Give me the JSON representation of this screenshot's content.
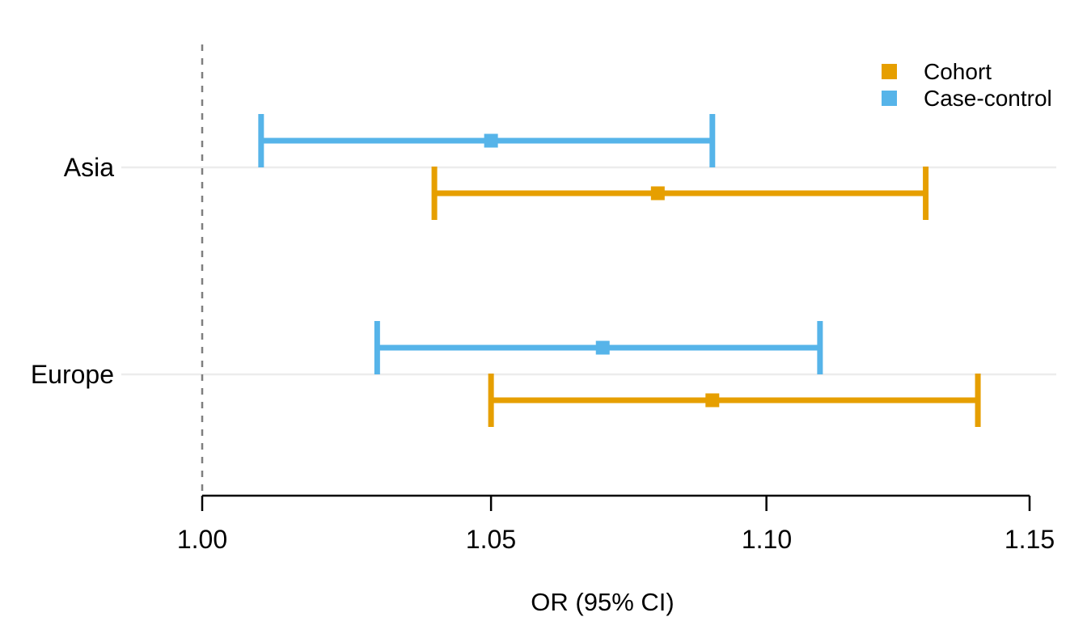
{
  "chart_data": {
    "type": "scatter",
    "subtype": "forest-plot-with-error-bars",
    "title": "",
    "xlabel": "OR (95% CI)",
    "ylabel": "",
    "x_scale": "log",
    "xlim": [
      0.986,
      1.155
    ],
    "x_ticks": [
      1.0,
      1.05,
      1.1,
      1.15
    ],
    "x_tick_labels": [
      "1.00",
      "1.05",
      "1.10",
      "1.15"
    ],
    "reference_line_x": 1.0,
    "grid": "horizontal category gridlines only",
    "legend_position": "top-right",
    "groups": [
      "Asia",
      "Europe"
    ],
    "series": [
      {
        "name": "Cohort",
        "color": "#E69F00",
        "points": [
          {
            "group": "Asia",
            "or": 1.08,
            "ci_low": 1.04,
            "ci_high": 1.13
          },
          {
            "group": "Europe",
            "or": 1.09,
            "ci_low": 1.05,
            "ci_high": 1.14
          }
        ]
      },
      {
        "name": "Case-control",
        "color": "#56B4E9",
        "points": [
          {
            "group": "Asia",
            "or": 1.05,
            "ci_low": 1.01,
            "ci_high": 1.09
          },
          {
            "group": "Europe",
            "or": 1.07,
            "ci_low": 1.03,
            "ci_high": 1.11
          }
        ]
      }
    ],
    "colors": {
      "reference_line": "#7F7F7F",
      "gridline": "#ECECEC",
      "axis": "#000000",
      "text": "#000000",
      "background": "#FFFFFF"
    }
  }
}
